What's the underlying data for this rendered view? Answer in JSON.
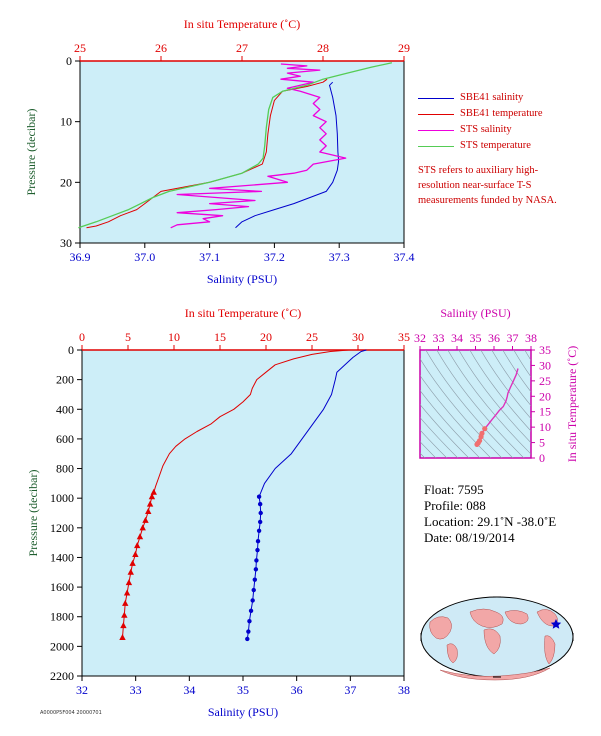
{
  "colors": {
    "plot_bg": "#cdeef8",
    "temp": "#e00000",
    "salt": "#0000cc",
    "sts_sal": "#ee00dd",
    "sts_temp": "#55cc55",
    "pressure_label": "#1f5f2f",
    "inset_axis": "#cc00aa"
  },
  "top_panel": {
    "top_axis_label": "In situ Temperature (˚C)",
    "bottom_axis_label": "Salinity (PSU)",
    "y_axis_label": "Pressure (decibar)",
    "legend": [
      "SBE41 salinity",
      "SBE41 temperature",
      "STS salinity",
      "STS temperature"
    ],
    "note": "STS refers to auxiliary high-resolution near-surface T-S measurements funded by NASA."
  },
  "bottom_panel": {
    "top_axis_label": "In situ Temperature (˚C)",
    "bottom_axis_label": "Salinity (PSU)",
    "y_axis_label": "Pressure (decibar)"
  },
  "inset": {
    "top_axis_label": "Salinity (PSU)",
    "right_axis_label": "In situ Temperature (˚C)"
  },
  "info": {
    "float": "Float:  7595",
    "profile": "Profile:  088",
    "location": "Location:  29.1˚N  -38.0˚E",
    "date": "Date:  08/19/2014"
  },
  "footer": "A0000P5F004 20000701",
  "chart_data": [
    {
      "type": "line",
      "panel": "top",
      "top_axis": {
        "range": [
          25,
          29
        ],
        "ticks": [
          25,
          26,
          27,
          28,
          29
        ]
      },
      "bottom_axis": {
        "range": [
          36.9,
          37.4
        ],
        "ticks": [
          "36.9",
          "37.0",
          "37.1",
          "37.2",
          "37.3",
          "37.4"
        ]
      },
      "y_axis": {
        "range": [
          0,
          30
        ],
        "inverted": true,
        "ticks": [
          0,
          10,
          20,
          30
        ]
      },
      "series": [
        {
          "name": "SBE41 salinity",
          "axis": "salinity",
          "points": [
            [
              37.29,
              3.5
            ],
            [
              37.285,
              4
            ],
            [
              37.29,
              6
            ],
            [
              37.295,
              9
            ],
            [
              37.297,
              12
            ],
            [
              37.298,
              15
            ],
            [
              37.299,
              16.5
            ],
            [
              37.297,
              18
            ],
            [
              37.29,
              20
            ],
            [
              37.28,
              21.5
            ],
            [
              37.255,
              22.5
            ],
            [
              37.23,
              23.5
            ],
            [
              37.2,
              24.5
            ],
            [
              37.17,
              25.5
            ],
            [
              37.15,
              26.5
            ],
            [
              37.14,
              27.5
            ]
          ]
        },
        {
          "name": "SBE41 temperature",
          "axis": "temperature",
          "points": [
            [
              28.05,
              3
            ],
            [
              28.0,
              3.5
            ],
            [
              27.8,
              4.2
            ],
            [
              27.5,
              5
            ],
            [
              27.4,
              6.5
            ],
            [
              27.35,
              9
            ],
            [
              27.32,
              12
            ],
            [
              27.3,
              15
            ],
            [
              27.25,
              17
            ],
            [
              27.0,
              18.5
            ],
            [
              26.6,
              20
            ],
            [
              26.0,
              21.5
            ],
            [
              25.9,
              22.5
            ],
            [
              25.8,
              23.5
            ],
            [
              25.7,
              24.5
            ],
            [
              25.5,
              25.5
            ],
            [
              25.35,
              26.5
            ],
            [
              25.2,
              27.2
            ],
            [
              25.08,
              27.5
            ]
          ]
        },
        {
          "name": "STS salinity",
          "axis": "salinity",
          "points": [
            [
              37.21,
              0.5
            ],
            [
              37.25,
              0.8
            ],
            [
              37.22,
              1.2
            ],
            [
              37.27,
              1.5
            ],
            [
              37.22,
              2
            ],
            [
              37.24,
              2.5
            ],
            [
              37.21,
              3
            ],
            [
              37.26,
              3.5
            ],
            [
              37.22,
              4.5
            ],
            [
              37.24,
              5
            ],
            [
              37.27,
              6
            ],
            [
              37.26,
              7
            ],
            [
              37.27,
              8
            ],
            [
              37.26,
              9
            ],
            [
              37.28,
              10
            ],
            [
              37.27,
              11
            ],
            [
              37.28,
              12
            ],
            [
              37.27,
              13
            ],
            [
              37.28,
              14
            ],
            [
              37.27,
              15
            ],
            [
              37.31,
              16
            ],
            [
              37.26,
              17
            ],
            [
              37.25,
              18
            ],
            [
              37.23,
              18.5
            ],
            [
              37.19,
              19
            ],
            [
              37.22,
              20
            ],
            [
              37.16,
              20.5
            ],
            [
              37.1,
              21
            ],
            [
              37.18,
              21.5
            ],
            [
              37.05,
              22
            ],
            [
              37.11,
              22.5
            ],
            [
              37.17,
              23
            ],
            [
              37.1,
              23.5
            ],
            [
              37.16,
              24
            ],
            [
              37.11,
              24.5
            ],
            [
              37.05,
              25
            ],
            [
              37.12,
              25.5
            ],
            [
              37.09,
              26
            ],
            [
              37.1,
              26.5
            ],
            [
              37.05,
              27
            ],
            [
              37.04,
              27.5
            ]
          ]
        },
        {
          "name": "STS temperature",
          "axis": "temperature",
          "points": [
            [
              28.85,
              0.3
            ],
            [
              28.6,
              1
            ],
            [
              28.3,
              2
            ],
            [
              28.0,
              3
            ],
            [
              27.8,
              4
            ],
            [
              27.5,
              5
            ],
            [
              27.38,
              6
            ],
            [
              27.33,
              8
            ],
            [
              27.3,
              11
            ],
            [
              27.28,
              14
            ],
            [
              27.26,
              16
            ],
            [
              27.2,
              17
            ],
            [
              27.0,
              18.5
            ],
            [
              26.6,
              20
            ],
            [
              26.1,
              21.5
            ],
            [
              25.9,
              22.5
            ],
            [
              25.75,
              23.5
            ],
            [
              25.6,
              24.5
            ],
            [
              25.4,
              25.5
            ],
            [
              25.2,
              26.5
            ],
            [
              24.98,
              27.5
            ]
          ]
        }
      ]
    },
    {
      "type": "line",
      "panel": "bottom",
      "top_axis": {
        "range": [
          0,
          35
        ],
        "ticks": [
          0,
          5,
          10,
          15,
          20,
          25,
          30,
          35
        ]
      },
      "bottom_axis": {
        "range": [
          32,
          38
        ],
        "ticks": [
          32,
          33,
          34,
          35,
          36,
          37,
          38
        ]
      },
      "y_axis": {
        "range": [
          0,
          2200
        ],
        "inverted": true,
        "ticks": [
          0,
          200,
          400,
          600,
          800,
          1000,
          1200,
          1400,
          1600,
          1800,
          2000,
          2200
        ]
      },
      "series": [
        {
          "name": "Temperature",
          "axis": "temperature",
          "marker": "triangle",
          "points": [
            [
              29,
              0
            ],
            [
              27,
              10
            ],
            [
              25,
              30
            ],
            [
              23,
              60
            ],
            [
              21,
              100
            ],
            [
              20,
              150
            ],
            [
              19,
              200
            ],
            [
              18.5,
              260
            ],
            [
              18.3,
              300
            ],
            [
              17.5,
              350
            ],
            [
              16.5,
              400
            ],
            [
              15,
              450
            ],
            [
              14,
              500
            ],
            [
              12.5,
              550
            ],
            [
              11.2,
              600
            ],
            [
              10.2,
              650
            ],
            [
              9.5,
              700
            ],
            [
              8.8,
              780
            ],
            [
              8.4,
              850
            ],
            [
              8.0,
              920
            ],
            [
              7.8,
              960
            ],
            [
              7.6,
              990
            ],
            [
              7.4,
              1040
            ],
            [
              7.2,
              1090
            ],
            [
              6.9,
              1150
            ],
            [
              6.6,
              1200
            ],
            [
              6.3,
              1260
            ],
            [
              6.0,
              1320
            ],
            [
              5.8,
              1380
            ],
            [
              5.5,
              1440
            ],
            [
              5.3,
              1500
            ],
            [
              5.1,
              1570
            ],
            [
              4.9,
              1640
            ],
            [
              4.7,
              1710
            ],
            [
              4.6,
              1790
            ],
            [
              4.5,
              1860
            ],
            [
              4.4,
              1940
            ]
          ]
        },
        {
          "name": "Salinity",
          "axis": "salinity",
          "marker": "circle",
          "points": [
            [
              37.3,
              0
            ],
            [
              37.2,
              10
            ],
            [
              37.05,
              50
            ],
            [
              36.9,
              100
            ],
            [
              36.75,
              150
            ],
            [
              36.72,
              200
            ],
            [
              36.65,
              300
            ],
            [
              36.5,
              400
            ],
            [
              36.3,
              500
            ],
            [
              36.1,
              600
            ],
            [
              35.9,
              700
            ],
            [
              35.6,
              800
            ],
            [
              35.4,
              900
            ],
            [
              35.3,
              990
            ],
            [
              35.32,
              1040
            ],
            [
              35.33,
              1100
            ],
            [
              35.32,
              1160
            ],
            [
              35.3,
              1220
            ],
            [
              35.28,
              1290
            ],
            [
              35.27,
              1350
            ],
            [
              35.25,
              1420
            ],
            [
              35.24,
              1480
            ],
            [
              35.22,
              1550
            ],
            [
              35.2,
              1620
            ],
            [
              35.18,
              1690
            ],
            [
              35.15,
              1760
            ],
            [
              35.12,
              1830
            ],
            [
              35.1,
              1900
            ],
            [
              35.08,
              1950
            ]
          ]
        }
      ]
    },
    {
      "type": "scatter",
      "panel": "inset",
      "x_axis": {
        "label": "Salinity (PSU)",
        "range": [
          32,
          38
        ],
        "ticks": [
          32,
          33,
          34,
          35,
          36,
          37,
          38
        ]
      },
      "y_axis": {
        "label": "In situ Temperature (˚C)",
        "range": [
          0,
          35
        ],
        "ticks": [
          0,
          5,
          10,
          15,
          20,
          25,
          30,
          35
        ]
      },
      "series": [
        {
          "name": "T-S",
          "points": [
            [
              35.08,
              4.4
            ],
            [
              35.15,
              4.9
            ],
            [
              35.22,
              5.6
            ],
            [
              35.3,
              6.9
            ],
            [
              35.35,
              8.0
            ],
            [
              35.5,
              9.5
            ],
            [
              35.7,
              11
            ],
            [
              35.9,
              12.5
            ],
            [
              36.1,
              14
            ],
            [
              36.3,
              15.5
            ],
            [
              36.5,
              16.7
            ],
            [
              36.65,
              18.5
            ],
            [
              36.72,
              20
            ],
            [
              36.75,
              21
            ],
            [
              36.9,
              23
            ],
            [
              37.05,
              25
            ],
            [
              37.2,
              27
            ],
            [
              37.3,
              29
            ]
          ]
        }
      ]
    }
  ]
}
